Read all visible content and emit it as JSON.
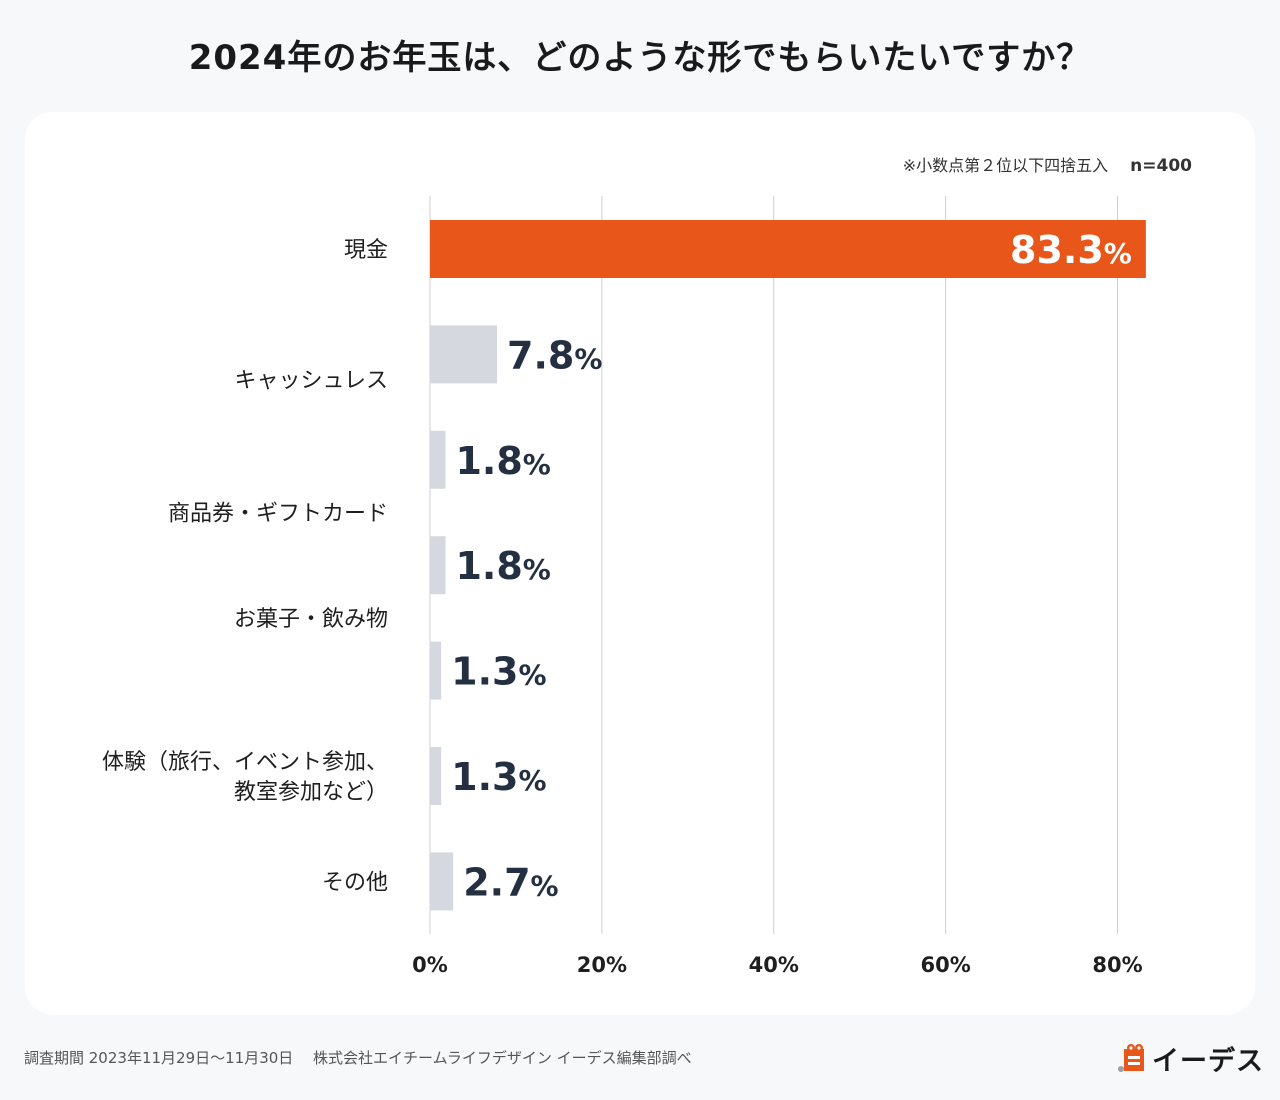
{
  "title": "2024年のお年玉は、どのような形でもらいたいですか？",
  "note": "※小数点第２位以下四捨五入",
  "sample": "n=400",
  "footer": "調査期間 2023年11月29日〜11月30日　 株式会社エイチームライフデザイン イーデス編集部調べ",
  "brand": "イーデス",
  "colors": {
    "accent": "#e8561a",
    "bar": "#d5d8de",
    "value_text": "#243042",
    "grid": "#cfcfcf"
  },
  "chart_data": {
    "type": "bar",
    "orientation": "horizontal",
    "title": "2024年のお年玉は、どのような形でもらいたいですか？",
    "unit": "%",
    "xlim": [
      0,
      80
    ],
    "ticks": [
      0,
      20,
      40,
      60,
      80
    ],
    "tick_labels": [
      "0%",
      "20%",
      "40%",
      "60%",
      "80%"
    ],
    "label_groups": [
      {
        "lines": [
          "現金"
        ],
        "rows": [
          0
        ]
      },
      {
        "lines": [
          "キャッシュレス"
        ],
        "rows": [
          1
        ]
      },
      {
        "lines": [
          "商品券・ギフトカード"
        ],
        "rows": [
          2,
          3
        ]
      },
      {
        "lines": [
          "お菓子・飲み物"
        ],
        "rows": [
          3,
          4
        ]
      },
      {
        "lines": [
          "体験（旅行、イベント参加、",
          "教室参加など）"
        ],
        "rows": [
          5
        ]
      },
      {
        "lines": [
          "その他"
        ],
        "rows": [
          6
        ]
      }
    ],
    "values": [
      83.3,
      7.8,
      1.8,
      1.8,
      1.3,
      1.3,
      2.7
    ],
    "value_labels": [
      "83.3",
      "7.8",
      "1.8",
      "1.8",
      "1.3",
      "1.3",
      "2.7"
    ],
    "highlight_index": 0
  }
}
